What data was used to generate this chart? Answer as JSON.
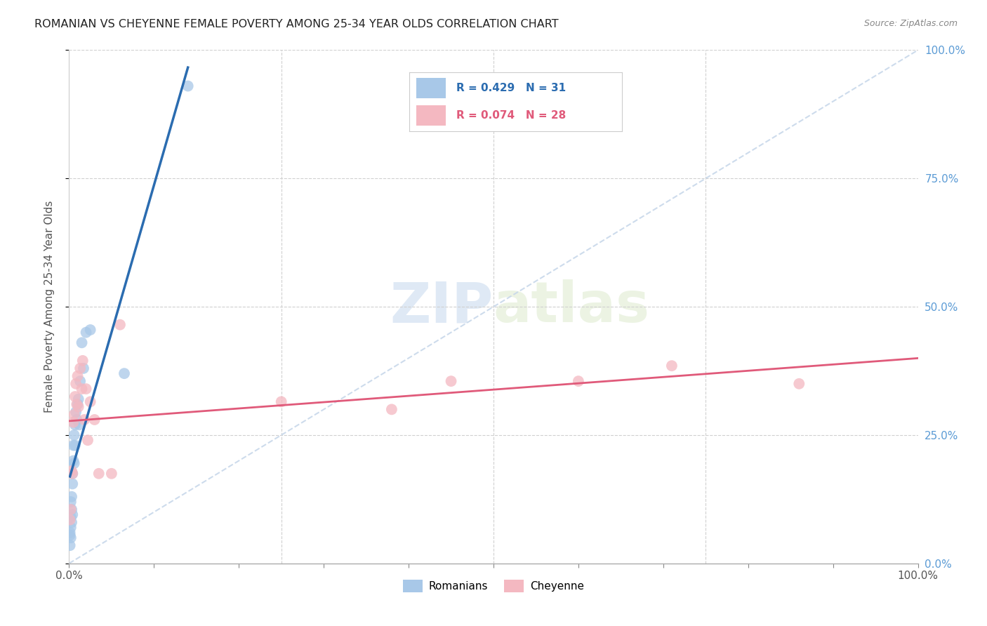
{
  "title": "ROMANIAN VS CHEYENNE FEMALE POVERTY AMONG 25-34 YEAR OLDS CORRELATION CHART",
  "source": "Source: ZipAtlas.com",
  "ylabel": "Female Poverty Among 25-34 Year Olds",
  "xlim": [
    0,
    1.0
  ],
  "ylim": [
    0,
    1.0
  ],
  "legend_text1": "R = 0.429   N = 31",
  "legend_text2": "R = 0.074   N = 28",
  "romanian_color": "#a8c8e8",
  "cheyenne_color": "#f4b8c1",
  "romanian_line_color": "#2b6cb0",
  "cheyenne_line_color": "#e05a7a",
  "diagonal_color": "#c8d8ea",
  "watermark_zip": "ZIP",
  "watermark_atlas": "atlas",
  "romanian_x": [
    0.001,
    0.001,
    0.001,
    0.002,
    0.002,
    0.002,
    0.002,
    0.003,
    0.003,
    0.003,
    0.004,
    0.004,
    0.004,
    0.005,
    0.005,
    0.006,
    0.006,
    0.007,
    0.007,
    0.008,
    0.009,
    0.01,
    0.011,
    0.012,
    0.013,
    0.015,
    0.017,
    0.02,
    0.025,
    0.065,
    0.14
  ],
  "romanian_y": [
    0.035,
    0.055,
    0.06,
    0.05,
    0.07,
    0.09,
    0.12,
    0.08,
    0.105,
    0.13,
    0.095,
    0.155,
    0.175,
    0.2,
    0.23,
    0.195,
    0.25,
    0.23,
    0.27,
    0.295,
    0.28,
    0.31,
    0.32,
    0.27,
    0.355,
    0.43,
    0.38,
    0.45,
    0.455,
    0.37,
    0.93
  ],
  "cheyenne_x": [
    0.001,
    0.002,
    0.003,
    0.004,
    0.005,
    0.006,
    0.007,
    0.008,
    0.009,
    0.01,
    0.011,
    0.013,
    0.015,
    0.016,
    0.018,
    0.02,
    0.022,
    0.025,
    0.03,
    0.035,
    0.05,
    0.06,
    0.25,
    0.38,
    0.45,
    0.6,
    0.71,
    0.86
  ],
  "cheyenne_y": [
    0.085,
    0.105,
    0.18,
    0.175,
    0.275,
    0.29,
    0.325,
    0.35,
    0.31,
    0.365,
    0.305,
    0.38,
    0.34,
    0.395,
    0.28,
    0.34,
    0.24,
    0.315,
    0.28,
    0.175,
    0.175,
    0.465,
    0.315,
    0.3,
    0.355,
    0.355,
    0.385,
    0.35
  ]
}
